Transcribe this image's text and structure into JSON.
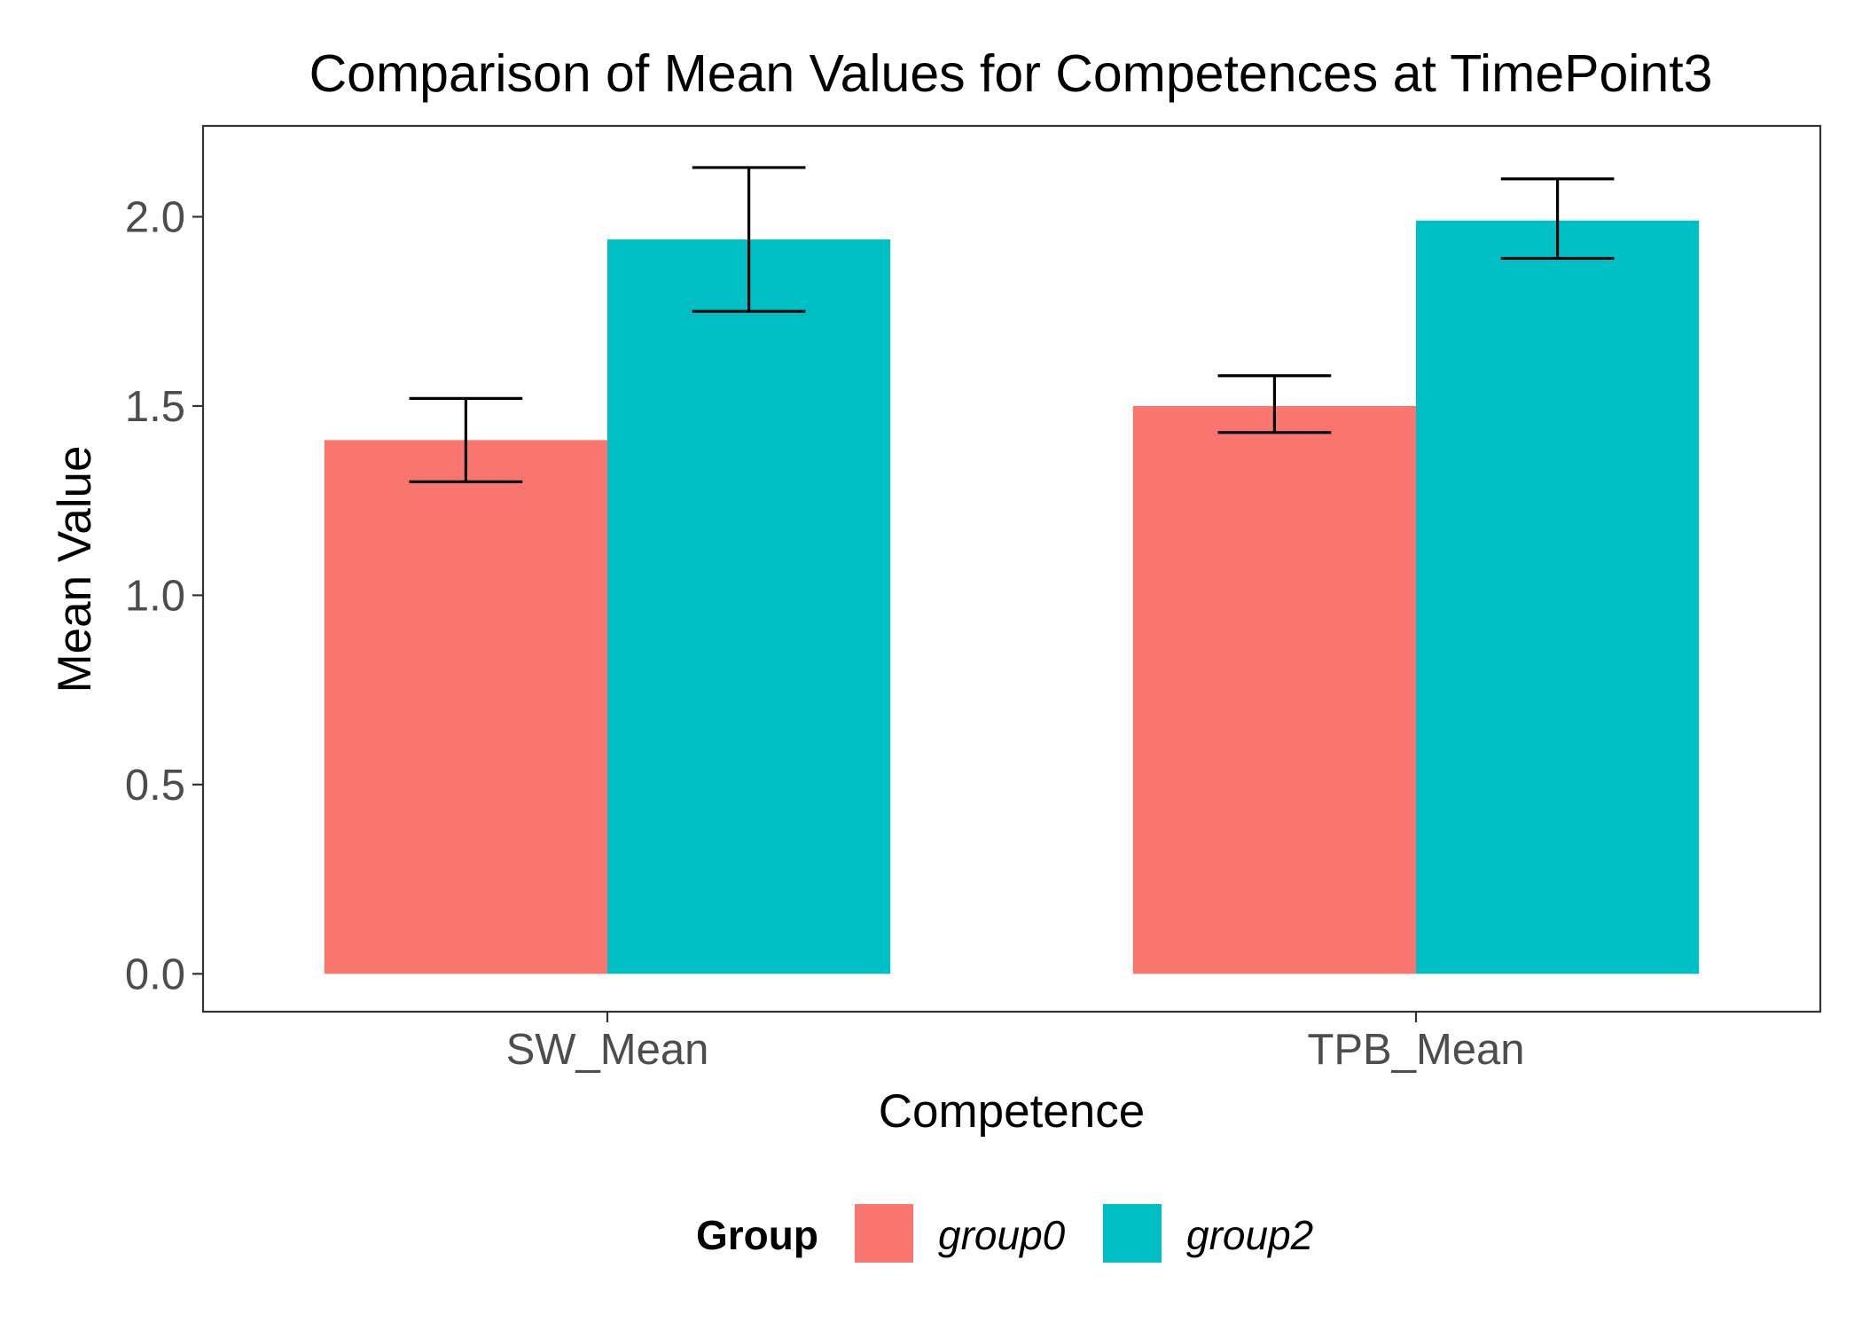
{
  "chart_data": {
    "type": "bar",
    "title": "Comparison of Mean Values for Competences at TimePoint3",
    "xlabel": "Competence",
    "ylabel": "Mean Value",
    "categories": [
      "SW_Mean",
      "TPB_Mean"
    ],
    "series": [
      {
        "name": "group0",
        "color": "#F8766D",
        "values": [
          1.41,
          1.5
        ],
        "error_low": [
          1.3,
          1.43
        ],
        "error_high": [
          1.52,
          1.58
        ]
      },
      {
        "name": "group2",
        "color": "#00BFC4",
        "values": [
          1.94,
          1.99
        ],
        "error_low": [
          1.75,
          1.89
        ],
        "error_high": [
          2.13,
          2.1
        ]
      }
    ],
    "yticks": [
      "0.0",
      "0.5",
      "1.0",
      "1.5",
      "2.0"
    ],
    "ylim": [
      -0.1,
      2.24
    ],
    "legend_title": "Group",
    "legend_position": "bottom",
    "grid": false
  }
}
